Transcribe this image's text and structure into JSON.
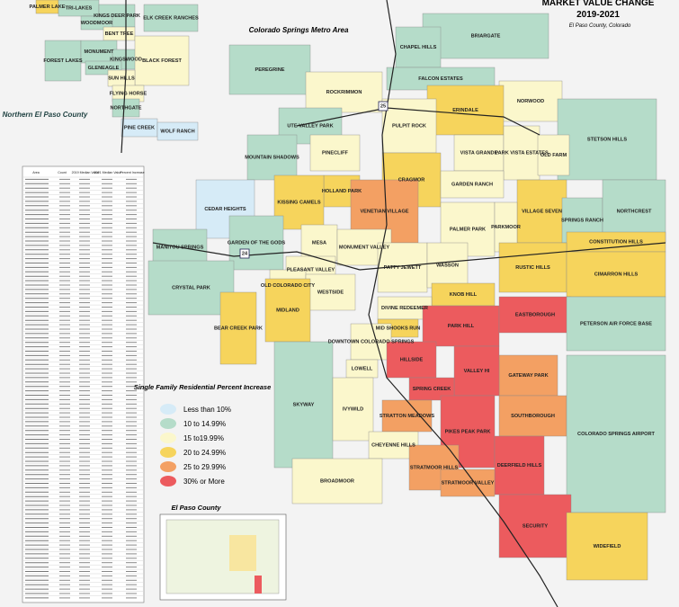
{
  "header": {
    "title": "MARKET VALUE CHANGE",
    "years": "2019-2021",
    "subtitle": "El Paso County, Colorado"
  },
  "metro_label": "Colorado Springs Metro Area",
  "north_label": "Northern El Paso County",
  "inset_label": "El Paso County",
  "legend": {
    "title": "Single Family Residential Percent Increase",
    "items": [
      {
        "label": "Less than 10%",
        "color": "#d6ebf7"
      },
      {
        "label": "10 to 14.99%",
        "color": "#b5dcc9"
      },
      {
        "label": "15 to19.99%",
        "color": "#fbf7cc"
      },
      {
        "label": "20 to 24.99%",
        "color": "#f6d45c"
      },
      {
        "label": "25 to 29.99%",
        "color": "#f3a063"
      },
      {
        "label": "30% or More",
        "color": "#ec5b5e"
      }
    ]
  },
  "table": {
    "headers": [
      "Area",
      "Count",
      "2019 Median Value",
      "2021 Median Value",
      "Percent Increase"
    ]
  },
  "highways": [
    "24",
    "25"
  ],
  "neighborhoods": [
    {
      "name": "BRIARGATE",
      "category": 1
    },
    {
      "name": "CHAPEL HILLS",
      "category": 1
    },
    {
      "name": "PEREGRINE",
      "category": 1
    },
    {
      "name": "ROCKRIMMON",
      "category": 2
    },
    {
      "name": "FALCON ESTATES",
      "category": 1
    },
    {
      "name": "NORWOOD",
      "category": 2
    },
    {
      "name": "ERINDALE",
      "category": 3
    },
    {
      "name": "PULPIT ROCK",
      "category": 2
    },
    {
      "name": "UTE VALLEY PARK",
      "category": 1
    },
    {
      "name": "STETSON HILLS",
      "category": 1
    },
    {
      "name": "MOUNTAIN SHADOWS",
      "category": 1
    },
    {
      "name": "PINECLIFF",
      "category": 2
    },
    {
      "name": "VISTA GRANDE",
      "category": 2
    },
    {
      "name": "PARK VISTA ESTATES",
      "category": 2
    },
    {
      "name": "OLD FARM",
      "category": 2
    },
    {
      "name": "CRAGMOR",
      "category": 3
    },
    {
      "name": "GARDEN RANCH",
      "category": 2
    },
    {
      "name": "HOLLAND PARK",
      "category": 3
    },
    {
      "name": "KISSING CAMELS",
      "category": 3
    },
    {
      "name": "CEDAR HEIGHTS",
      "category": 0
    },
    {
      "name": "VENETIAN VILLAGE",
      "category": 4
    },
    {
      "name": "VILLAGE SEVEN",
      "category": 3
    },
    {
      "name": "SPRINGS RANCH",
      "category": 1
    },
    {
      "name": "NORTHCREST",
      "category": 1
    },
    {
      "name": "PALMER PARK",
      "category": 2
    },
    {
      "name": "PARKMOOR",
      "category": 2
    },
    {
      "name": "GARDEN OF THE GODS",
      "category": 1
    },
    {
      "name": "MESA",
      "category": 2
    },
    {
      "name": "MONUMENT VALLEY",
      "category": 2
    },
    {
      "name": "CONSTITUTION HILLS",
      "category": 3
    },
    {
      "name": "MANITOU SPRINGS",
      "category": 1
    },
    {
      "name": "PATTY JEWETT",
      "category": 2
    },
    {
      "name": "WASSON",
      "category": 2
    },
    {
      "name": "PLEASANT VALLEY",
      "category": 2
    },
    {
      "name": "RUSTIC HILLS",
      "category": 3
    },
    {
      "name": "CIMARRON HILLS",
      "category": 3
    },
    {
      "name": "CRYSTAL PARK",
      "category": 1
    },
    {
      "name": "OLD COLORADO CITY",
      "category": 2
    },
    {
      "name": "KNOB HILL",
      "category": 3
    },
    {
      "name": "DIVINE REDEEMER",
      "category": 2
    },
    {
      "name": "WESTSIDE",
      "category": 2
    },
    {
      "name": "MIDLAND",
      "category": 3
    },
    {
      "name": "BEAR CREEK PARK",
      "category": 3
    },
    {
      "name": "MID SHOOKS RUN",
      "category": 3
    },
    {
      "name": "PARK HILL",
      "category": 5
    },
    {
      "name": "EASTBOROUGH",
      "category": 5
    },
    {
      "name": "PETERSON AIR FORCE BASE",
      "category": 1
    },
    {
      "name": "DOWNTOWN COLORADO SPRINGS",
      "category": 2
    },
    {
      "name": "HILLSIDE",
      "category": 5
    },
    {
      "name": "LOWELL",
      "category": 2
    },
    {
      "name": "GATEWAY PARK",
      "category": 4
    },
    {
      "name": "VALLEY HI",
      "category": 5
    },
    {
      "name": "SPRING CREEK",
      "category": 5
    },
    {
      "name": "SKYWAY",
      "category": 1
    },
    {
      "name": "IVYWILD",
      "category": 2
    },
    {
      "name": "STRATTON MEADOWS",
      "category": 4
    },
    {
      "name": "SOUTHBOROUGH",
      "category": 4
    },
    {
      "name": "PIKES PEAK PARK",
      "category": 5
    },
    {
      "name": "CHEYENNE HILLS",
      "category": 2
    },
    {
      "name": "COLORADO SPRINGS AIRPORT",
      "category": 1
    },
    {
      "name": "DEERFIELD HILLS",
      "category": 5
    },
    {
      "name": "STRATMOOR HILLS",
      "category": 4
    },
    {
      "name": "BROADMOOR",
      "category": 2
    },
    {
      "name": "STRATMOOR VALLEY",
      "category": 4
    },
    {
      "name": "SECURITY",
      "category": 5
    },
    {
      "name": "WIDEFIELD",
      "category": 3
    },
    {
      "name": "PALMER LAKE",
      "category": 3
    },
    {
      "name": "TRI-LAKES",
      "category": 1
    },
    {
      "name": "KINGS DEER PARK",
      "category": 1
    },
    {
      "name": "ELK CREEK RANCHES",
      "category": 1
    },
    {
      "name": "WOODMOOR",
      "category": 1
    },
    {
      "name": "BENT TREE",
      "category": 2
    },
    {
      "name": "FOREST LAKES",
      "category": 1
    },
    {
      "name": "MONUMENT",
      "category": 1
    },
    {
      "name": "KINGSWOOD",
      "category": 1
    },
    {
      "name": "GLENEAGLE",
      "category": 1
    },
    {
      "name": "BLACK FOREST",
      "category": 2
    },
    {
      "name": "SUN HILLS",
      "category": 2
    },
    {
      "name": "FLYING HORSE",
      "category": 2
    },
    {
      "name": "NORTHGATE",
      "category": 1
    },
    {
      "name": "PINE CREEK",
      "category": 0
    },
    {
      "name": "WOLF RANCH",
      "category": 0
    }
  ]
}
